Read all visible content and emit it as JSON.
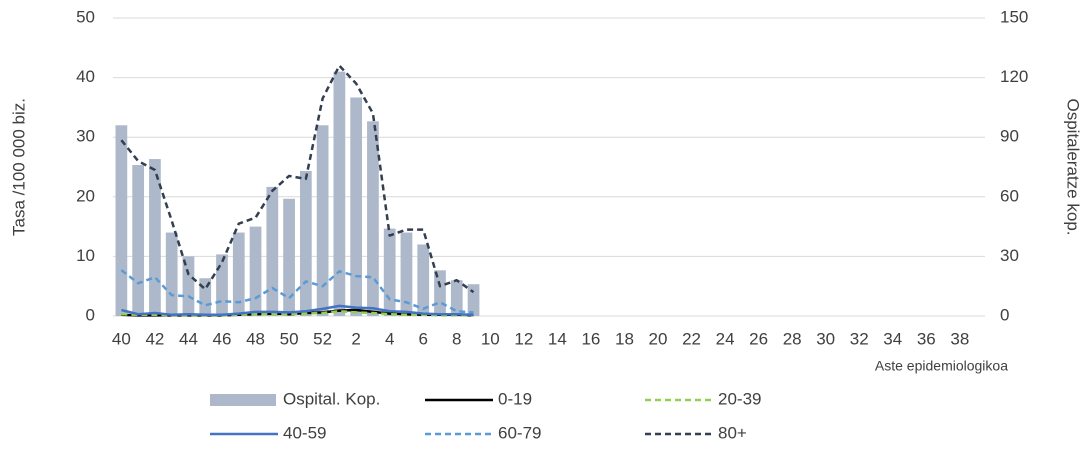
{
  "chart_data": {
    "type": "bar",
    "categories": [
      40,
      null,
      42,
      null,
      44,
      null,
      46,
      null,
      48,
      null,
      50,
      null,
      52,
      null,
      2,
      null,
      4,
      null,
      6,
      null,
      8,
      null,
      10,
      null,
      12,
      null,
      14,
      null,
      16,
      null,
      18,
      null,
      20,
      null,
      22,
      null,
      24,
      null,
      26,
      null,
      28,
      null,
      30,
      null,
      32,
      null,
      34,
      null,
      36,
      null,
      38,
      null
    ],
    "xlabel": "Aste epidemiologikoa",
    "ylabel": "Tasa /100 000 biz.",
    "y2label": "Ospitaleratze kop.",
    "ylim": [
      0,
      50
    ],
    "yticks": [
      0,
      10,
      20,
      30,
      40,
      50
    ],
    "y2lim": [
      0,
      150
    ],
    "y2ticks": [
      0,
      30,
      60,
      90,
      120,
      150
    ],
    "grid": true,
    "series": [
      {
        "name": "Ospital. Kop.",
        "type": "bar",
        "axis": "y2",
        "color": "#adb9ca",
        "values": [
          96,
          76,
          79,
          42,
          30,
          19,
          31,
          42,
          45,
          65,
          59,
          73,
          96,
          123,
          110,
          98,
          44,
          42,
          36,
          23,
          18,
          16,
          null,
          null,
          null,
          null,
          null,
          null,
          null,
          null,
          null,
          null,
          null,
          null,
          null,
          null,
          null,
          null,
          null,
          null,
          null,
          null,
          null,
          null,
          null,
          null,
          null,
          null,
          null,
          null,
          null,
          null
        ]
      },
      {
        "name": "0-19",
        "type": "line",
        "color": "#000000",
        "line_style": "solid",
        "values": [
          0.2,
          0.1,
          0.1,
          0.1,
          0.1,
          0.1,
          0.1,
          0.2,
          0.3,
          0.4,
          0.3,
          0.5,
          0.6,
          0.9,
          1.0,
          0.7,
          0.4,
          0.3,
          0.2,
          0.2,
          0.2,
          0.1,
          null,
          null,
          null,
          null,
          null,
          null,
          null,
          null,
          null,
          null,
          null,
          null,
          null,
          null,
          null,
          null,
          null,
          null,
          null,
          null,
          null,
          null,
          null,
          null,
          null,
          null,
          null,
          null,
          null,
          null
        ]
      },
      {
        "name": "20-39",
        "type": "line",
        "color": "#92d050",
        "line_style": "dashed",
        "values": [
          0.3,
          0.2,
          0.2,
          0.1,
          0.1,
          0.1,
          0.1,
          0.2,
          0.3,
          0.3,
          0.3,
          0.4,
          0.5,
          0.8,
          0.6,
          0.5,
          0.3,
          0.2,
          0.2,
          0.1,
          0.1,
          0.1,
          null,
          null,
          null,
          null,
          null,
          null,
          null,
          null,
          null,
          null,
          null,
          null,
          null,
          null,
          null,
          null,
          null,
          null,
          null,
          null,
          null,
          null,
          null,
          null,
          null,
          null,
          null,
          null,
          null,
          null
        ]
      },
      {
        "name": "40-59",
        "type": "line",
        "color": "#4472c4",
        "line_style": "solid",
        "values": [
          1,
          0.3,
          0.5,
          0.2,
          0.3,
          0.2,
          0.2,
          0.4,
          0.7,
          0.7,
          0.6,
          0.8,
          1.2,
          1.7,
          1.4,
          1.3,
          0.8,
          0.7,
          0.4,
          0.3,
          0.3,
          0.2,
          null,
          null,
          null,
          null,
          null,
          null,
          null,
          null,
          null,
          null,
          null,
          null,
          null,
          null,
          null,
          null,
          null,
          null,
          null,
          null,
          null,
          null,
          null,
          null,
          null,
          null,
          null,
          null,
          null,
          null
        ]
      },
      {
        "name": "60-79",
        "type": "line",
        "color": "#5b9bd5",
        "line_style": "dashed",
        "values": [
          7.7,
          5.5,
          6.5,
          3.5,
          3.3,
          1.8,
          2.5,
          2.3,
          3,
          4.7,
          3,
          5.8,
          5,
          7.5,
          6.7,
          6.5,
          2.8,
          2.3,
          1.2,
          2.3,
          0.8,
          0.6,
          null,
          null,
          null,
          null,
          null,
          null,
          null,
          null,
          null,
          null,
          null,
          null,
          null,
          null,
          null,
          null,
          null,
          null,
          null,
          null,
          null,
          null,
          null,
          null,
          null,
          null,
          null,
          null,
          null,
          null
        ]
      },
      {
        "name": "80+",
        "type": "line",
        "color": "#333f50",
        "line_style": "dashed",
        "values": [
          29.5,
          26,
          24.5,
          16,
          7,
          4.5,
          9,
          15.5,
          16.5,
          21,
          23.5,
          23,
          36.5,
          42,
          39,
          34,
          13.5,
          14.5,
          14.5,
          5,
          6,
          4,
          null,
          null,
          null,
          null,
          null,
          null,
          null,
          null,
          null,
          null,
          null,
          null,
          null,
          null,
          null,
          null,
          null,
          null,
          null,
          null,
          null,
          null,
          null,
          null,
          null,
          null,
          null,
          null,
          null,
          null
        ]
      }
    ]
  }
}
